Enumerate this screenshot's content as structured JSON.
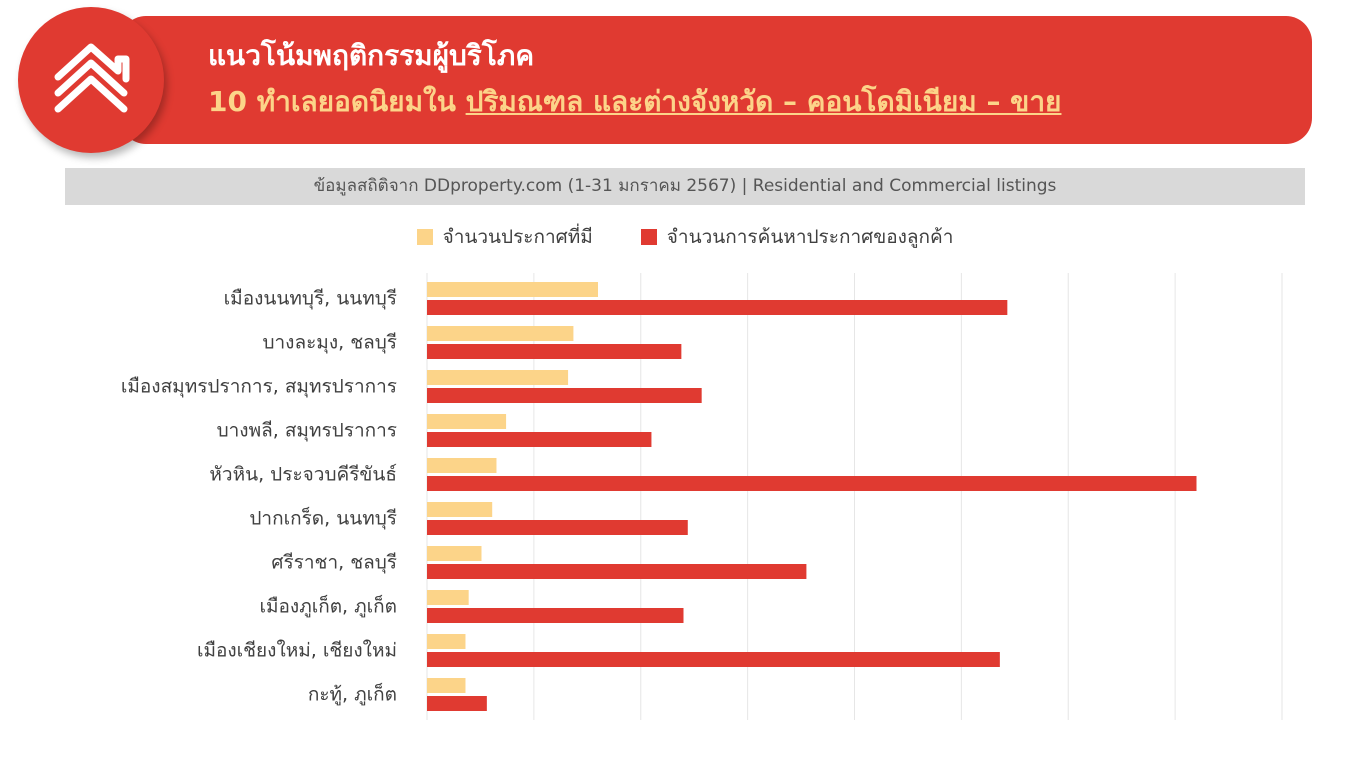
{
  "header": {
    "title_line1": "แนวโน้มพฤติกรรมผู้บริโภค",
    "title_line2_prefix": "10 ทำเลยอดนิยมใน ",
    "title_line2_highlight": "ปริมณฑล และต่างจังหวัด – คอนโดมิเนียม – ขาย",
    "logo_icon": "house-chevron-logo-icon"
  },
  "source_note": "ข้อมูลสถิติจาก DDproperty.com (1-31 มกราคม 2567) | Residential and Commercial listings",
  "colors": {
    "brand_red": "#e03a31",
    "series_listings": "#fcd489",
    "series_searches": "#e03a31",
    "title_highlight": "#fcd489"
  },
  "chart_data": {
    "type": "bar",
    "orientation": "horizontal",
    "categories": [
      "เมืองนนทบุรี, นนทบุรี",
      "บางละมุง, ชลบุรี",
      "เมืองสมุทรปราการ, สมุทรปราการ",
      "บางพลี, สมุทรปราการ",
      "หัวหิน, ประจวบคีรีขันธ์",
      "ปากเกร็ด, นนทบุรี",
      "ศรีราชา, ชลบุรี",
      "เมืองภูเก็ต, ภูเก็ต",
      "เมืองเชียงใหม่, เชียงใหม่",
      "กะทู้, ภูเก็ต"
    ],
    "series": [
      {
        "name": "จำนวนประกาศที่มี",
        "color": "#fcd489",
        "values": [
          16.0,
          13.7,
          13.2,
          7.4,
          6.5,
          6.1,
          5.1,
          3.9,
          3.6,
          3.6
        ]
      },
      {
        "name": "จำนวนการค้นหาประกาศของลูกค้า",
        "color": "#e03a31",
        "values": [
          54.3,
          23.8,
          25.7,
          21.0,
          72.0,
          24.4,
          35.5,
          24.0,
          53.6,
          5.6
        ]
      }
    ],
    "xlim": [
      0,
      80
    ],
    "gridline_count": 8,
    "grid": true,
    "axis_labels_shown": false,
    "legend_position": "top-center"
  }
}
